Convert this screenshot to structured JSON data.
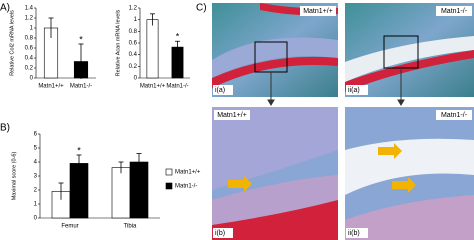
{
  "panel_labels": [
    "A)",
    "B)",
    "C)"
  ],
  "chart_data": [
    {
      "type": "bar",
      "ylabel": "Relative Col2 mRNA levels",
      "categories": [
        "Matn1+/+",
        "Matn1-/-"
      ],
      "values": [
        1.0,
        0.33
      ],
      "errors": [
        0.2,
        0.35
      ],
      "colors": [
        "#ffffff",
        "#000000"
      ],
      "annotation": "*",
      "significant": [
        false,
        true
      ],
      "ylim": [
        0,
        1.4
      ],
      "yticks": [
        0,
        0.2,
        0.4,
        0.6,
        0.8,
        1,
        1.2,
        1.4
      ]
    },
    {
      "type": "bar",
      "ylabel": "Relative Acan mRNA levels",
      "categories": [
        "Matn1+/+",
        "Matn1-/-"
      ],
      "values": [
        1.0,
        0.53
      ],
      "errors": [
        0.1,
        0.1
      ],
      "colors": [
        "#ffffff",
        "#000000"
      ],
      "annotation": "*",
      "significant": [
        false,
        true
      ],
      "ylim": [
        0,
        1.2
      ],
      "yticks": [
        0,
        0.2,
        0.4,
        0.6,
        0.8,
        1,
        1.2
      ]
    },
    {
      "type": "grouped-bar",
      "ylabel": "Maximal score (0-6)",
      "categories": [
        "Femur",
        "Tibia"
      ],
      "annotation": "*",
      "series": [
        {
          "name": "Matn1+/+",
          "color": "#ffffff",
          "values": [
            1.9,
            3.6
          ],
          "errors": [
            0.6,
            0.4
          ],
          "significant": [
            false,
            false
          ]
        },
        {
          "name": "Matn1-/-",
          "color": "#000000",
          "values": [
            3.9,
            4.0
          ],
          "errors": [
            0.6,
            0.6
          ],
          "significant": [
            true,
            false
          ]
        }
      ],
      "ylim": [
        0,
        6
      ],
      "yticks": [
        0,
        1,
        2,
        3,
        4,
        5,
        6
      ]
    }
  ],
  "images": [
    {
      "genotype": "Matn1+/+",
      "label": "i(a)"
    },
    {
      "genotype": "Matn1-/-",
      "label": "ii(a)"
    },
    {
      "genotype": "Matn1+/+",
      "label": "i(b)"
    },
    {
      "genotype": "Matn1-/-",
      "label": "ii(b)"
    }
  ]
}
